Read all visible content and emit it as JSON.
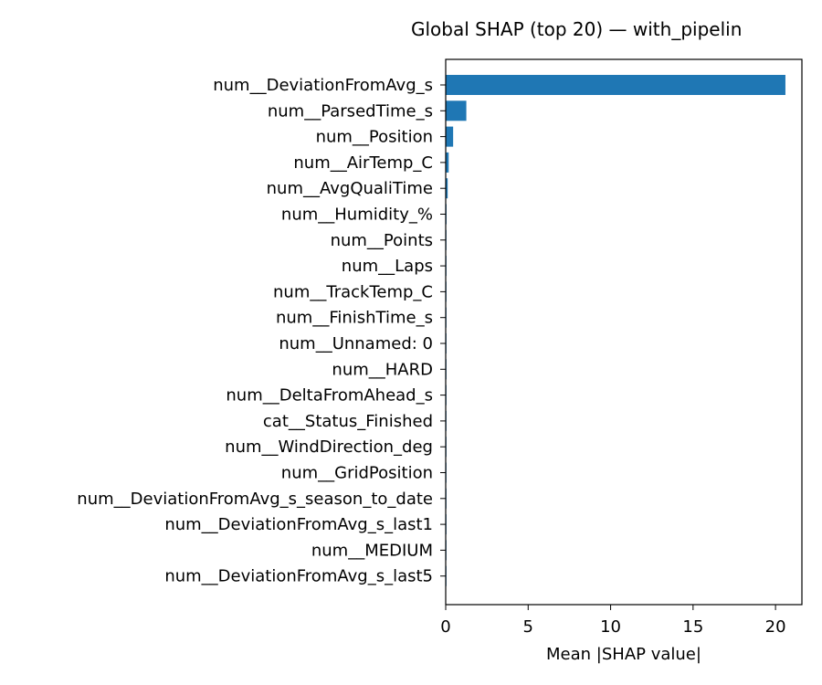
{
  "chart_data": {
    "type": "bar",
    "orientation": "horizontal",
    "title": "Global SHAP (top 20) — with_pipelin",
    "xlabel": "Mean |SHAP value|",
    "ylabel": "",
    "xlim": [
      0,
      21.6
    ],
    "xticks": [
      0,
      5,
      10,
      15,
      20
    ],
    "grid": false,
    "legend": "none",
    "bar_color": "#1f77b4",
    "categories": [
      "num__DeviationFromAvg_s",
      "num__ParsedTime_s",
      "num__Position",
      "num__AirTemp_C",
      "num__AvgQualiTime",
      "num__Humidity_%",
      "num__Points",
      "num__Laps",
      "num__TrackTemp_C",
      "num__FinishTime_s",
      "num__Unnamed: 0",
      "num__HARD",
      "num__DeltaFromAhead_s",
      "cat__Status_Finished",
      "num__WindDirection_deg",
      "num__GridPosition",
      "num__DeviationFromAvg_s_season_to_date",
      "num__DeviationFromAvg_s_last1",
      "num__MEDIUM",
      "num__DeviationFromAvg_s_last5"
    ],
    "values": [
      20.6,
      1.25,
      0.45,
      0.18,
      0.12,
      0.05,
      0.04,
      0.04,
      0.03,
      0.03,
      0.03,
      0.02,
      0.02,
      0.02,
      0.02,
      0.01,
      0.01,
      0.01,
      0.01,
      0.01
    ]
  }
}
